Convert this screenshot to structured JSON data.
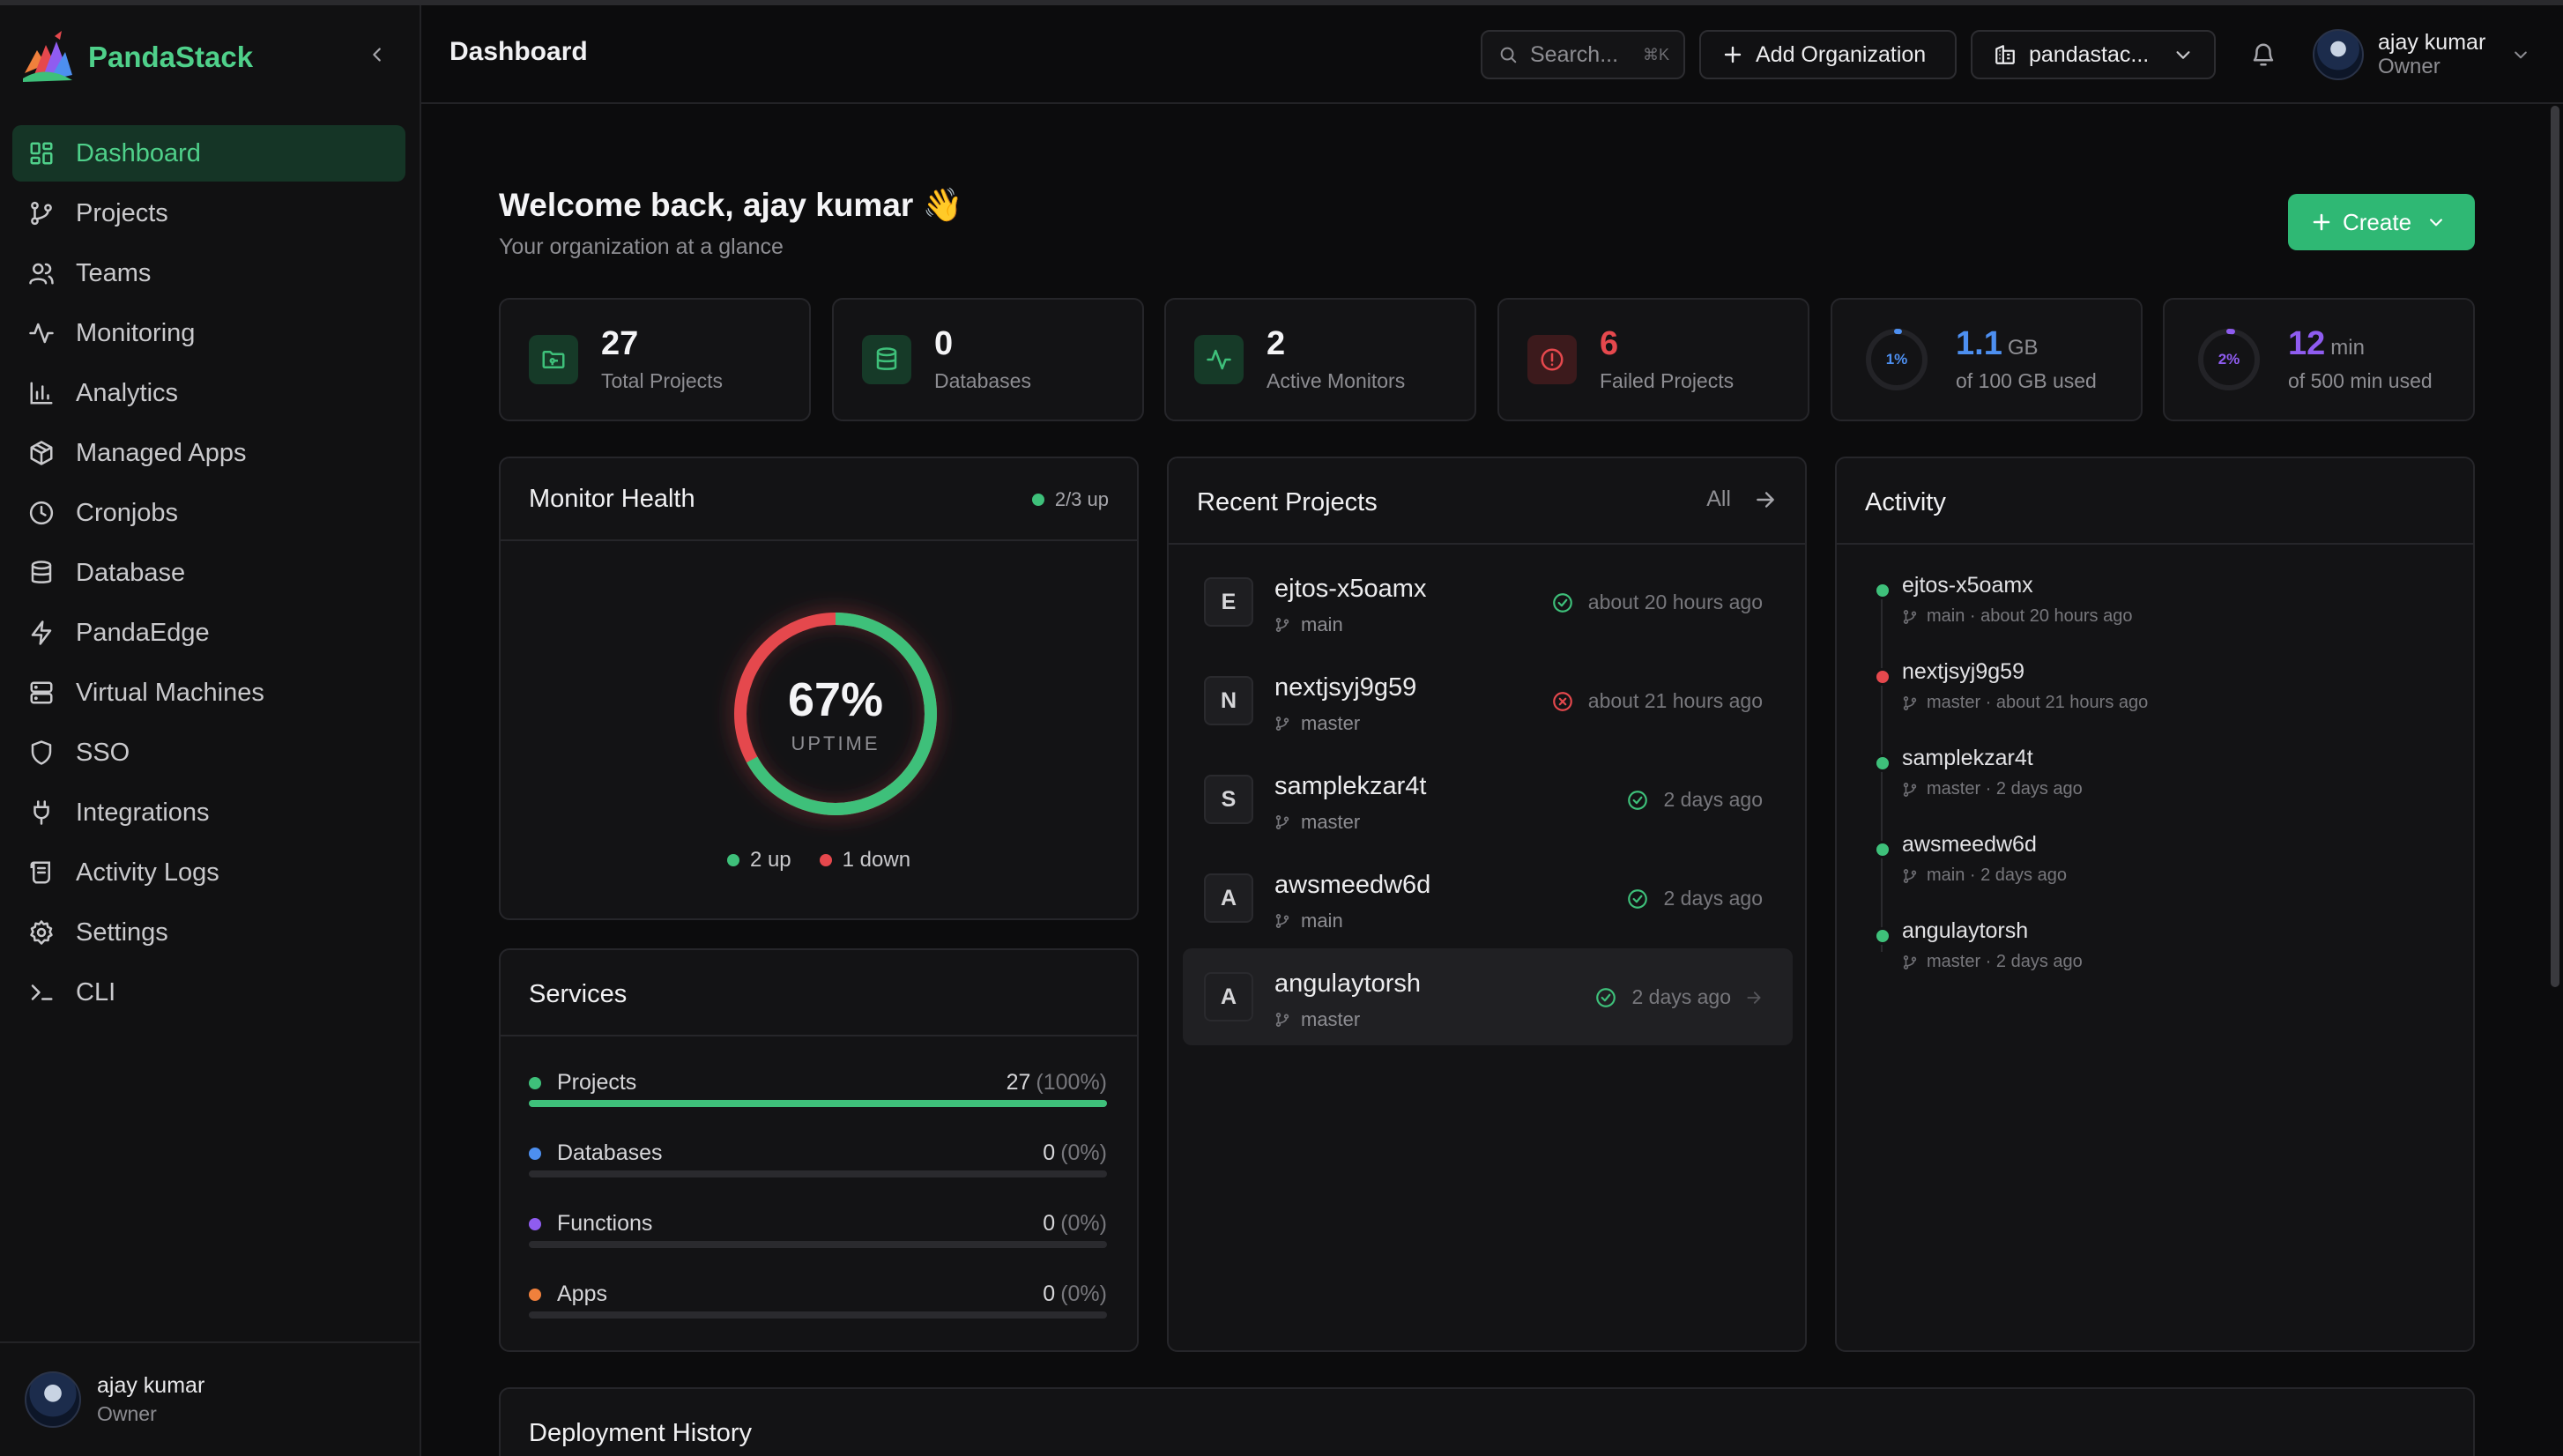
{
  "app": {
    "name": "PandaStack",
    "page_title": "Dashboard"
  },
  "colors": {
    "accent": "#4fd08a",
    "create_button": "#2fb874",
    "success": "#3ec07a",
    "danger": "#e5484d",
    "blue": "#4d8ff0",
    "purple": "#8f5cf0",
    "orange": "#f0803c"
  },
  "sidebar": {
    "items": [
      {
        "label": "Dashboard",
        "icon": "dashboard-grid-icon",
        "active": true
      },
      {
        "label": "Projects",
        "icon": "git-branch-icon"
      },
      {
        "label": "Teams",
        "icon": "users-icon"
      },
      {
        "label": "Monitoring",
        "icon": "activity-pulse-icon"
      },
      {
        "label": "Analytics",
        "icon": "bar-chart-icon"
      },
      {
        "label": "Managed Apps",
        "icon": "package-icon"
      },
      {
        "label": "Cronjobs",
        "icon": "clock-icon"
      },
      {
        "label": "Database",
        "icon": "database-icon"
      },
      {
        "label": "PandaEdge",
        "icon": "lightning-icon"
      },
      {
        "label": "Virtual Machines",
        "icon": "server-icon"
      },
      {
        "label": "SSO",
        "icon": "shield-icon"
      },
      {
        "label": "Integrations",
        "icon": "plug-icon"
      },
      {
        "label": "Activity Logs",
        "icon": "scroll-icon"
      },
      {
        "label": "Settings",
        "icon": "gear-icon"
      },
      {
        "label": "CLI",
        "icon": "terminal-icon"
      }
    ],
    "footer": {
      "name": "ajay kumar",
      "role": "Owner"
    }
  },
  "header": {
    "search_placeholder": "Search...",
    "search_shortcut": "⌘K",
    "add_org_label": "Add Organization",
    "org_name": "pandastac...",
    "user_name": "ajay kumar",
    "user_role": "Owner"
  },
  "welcome": {
    "title": "Welcome back, ajay kumar 👋",
    "subtitle": "Your organization at a glance",
    "create_label": "Create"
  },
  "stats": [
    {
      "value": "27",
      "label": "Total Projects",
      "icon": "folder-icon",
      "color": "#3ec07a"
    },
    {
      "value": "0",
      "label": "Databases",
      "icon": "database-icon",
      "color": "#3ec07a"
    },
    {
      "value": "2",
      "label": "Active Monitors",
      "icon": "activity-pulse-icon",
      "color": "#3ec07a"
    },
    {
      "value": "6",
      "label": "Failed Projects",
      "icon": "alert-circle-icon",
      "color": "#e5484d"
    }
  ],
  "usage": [
    {
      "percent_label": "1%",
      "fraction": 0.01,
      "value": "1.1",
      "unit": "GB",
      "label": "of 100 GB used",
      "color": "#4d8ff0"
    },
    {
      "percent_label": "2%",
      "fraction": 0.02,
      "value": "12",
      "unit": "min",
      "label": "of 500 min used",
      "color": "#8f5cf0"
    }
  ],
  "monitor_health": {
    "title": "Monitor Health",
    "badge": "2/3 up",
    "uptime_percent": "67%",
    "uptime_label": "UPTIME",
    "up_fraction": 0.67,
    "legend_up": "2 up",
    "legend_down": "1 down"
  },
  "services": {
    "title": "Services",
    "items": [
      {
        "name": "Projects",
        "count": "27",
        "pct": "(100%)",
        "fraction": 1.0,
        "color": "#3ec07a"
      },
      {
        "name": "Databases",
        "count": "0",
        "pct": "(0%)",
        "fraction": 0,
        "color": "#4d8ff0"
      },
      {
        "name": "Functions",
        "count": "0",
        "pct": "(0%)",
        "fraction": 0,
        "color": "#8f5cf0"
      },
      {
        "name": "Apps",
        "count": "0",
        "pct": "(0%)",
        "fraction": 0,
        "color": "#f0803c"
      }
    ]
  },
  "recent_projects": {
    "title": "Recent Projects",
    "all_label": "All",
    "items": [
      {
        "initial": "E",
        "name": "ejtos-x5oamx",
        "branch": "main",
        "status": "success",
        "time": "about 20 hours ago"
      },
      {
        "initial": "N",
        "name": "nextjsyj9g59",
        "branch": "master",
        "status": "failed",
        "time": "about 21 hours ago"
      },
      {
        "initial": "S",
        "name": "samplekzar4t",
        "branch": "master",
        "status": "success",
        "time": "2 days ago"
      },
      {
        "initial": "A",
        "name": "awsmeedw6d",
        "branch": "main",
        "status": "success",
        "time": "2 days ago"
      },
      {
        "initial": "A",
        "name": "angulaytorsh",
        "branch": "master",
        "status": "success",
        "time": "2 days ago"
      }
    ]
  },
  "activity": {
    "title": "Activity",
    "items": [
      {
        "name": "ejtos-x5oamx",
        "meta": "main · about 20 hours ago",
        "status": "success"
      },
      {
        "name": "nextjsyj9g59",
        "meta": "master · about 21 hours ago",
        "status": "failed"
      },
      {
        "name": "samplekzar4t",
        "meta": "master · 2 days ago",
        "status": "success"
      },
      {
        "name": "awsmeedw6d",
        "meta": "main · 2 days ago",
        "status": "success"
      },
      {
        "name": "angulaytorsh",
        "meta": "master · 2 days ago",
        "status": "success"
      }
    ]
  },
  "deployment_history": {
    "title": "Deployment History"
  }
}
